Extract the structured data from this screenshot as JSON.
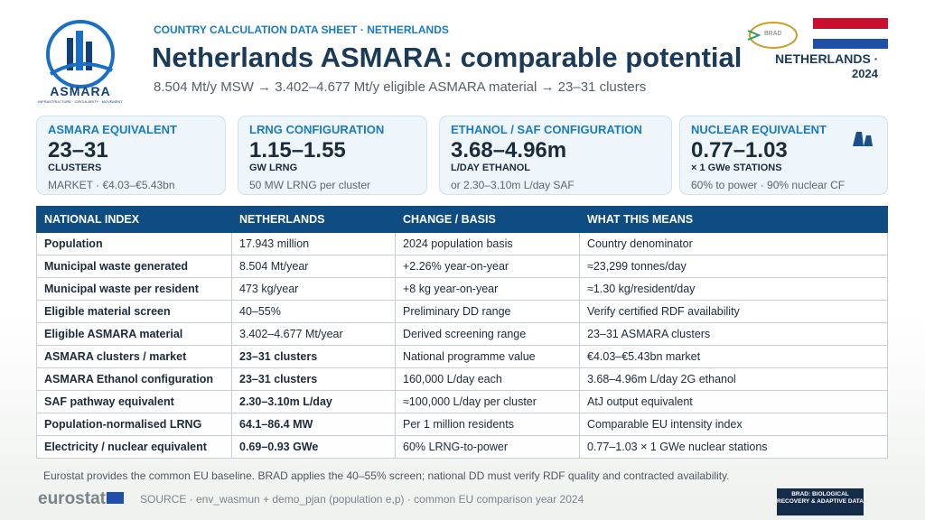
{
  "header": {
    "kicker": "COUNTRY CALCULATION DATA SHEET · NETHERLANDS",
    "title": "Netherlands ASMARA: comparable potential",
    "subtitle": "8.504 Mt/y MSW → 3.402–4.677 Mt/y eligible ASMARA material → 23–31 clusters",
    "logo_text": "ASMARA",
    "logo_tagline": "INFRASTRUCTURE · CIRCULARITY · MOVEMENT",
    "partner_logo": "BRAD",
    "country": "NETHERLANDS ·",
    "year": "2024"
  },
  "cards": [
    {
      "label": "ASMARA EQUIVALENT",
      "value": "23–31",
      "unit": "CLUSTERS",
      "note": "MARKET · €4.03–€5.43bn"
    },
    {
      "label": "LRNG CONFIGURATION",
      "value": "1.15–1.55",
      "unit": "GW LRNG",
      "note": "50 MW LRNG per cluster"
    },
    {
      "label": "ETHANOL / SAF CONFIGURATION",
      "value": "3.68–4.96m",
      "unit": "L/DAY ETHANOL",
      "note": "or 2.30–3.10m L/day SAF"
    },
    {
      "label": "NUCLEAR EQUIVALENT",
      "value": "0.77–1.03",
      "unit": "× 1 GWe STATIONS",
      "note": "60% to power · 90% nuclear CF"
    }
  ],
  "table": {
    "headers": [
      "NATIONAL INDEX",
      "NETHERLANDS",
      "CHANGE / BASIS",
      "WHAT THIS MEANS"
    ],
    "rows": [
      [
        "Population",
        "17.943 million",
        "2024 population basis",
        "Country denominator"
      ],
      [
        "Municipal waste generated",
        "8.504 Mt/year",
        "+2.26% year-on-year",
        "≈23,299 tonnes/day"
      ],
      [
        "Municipal waste per resident",
        "473 kg/year",
        "+8 kg year-on-year",
        "≈1.30 kg/resident/day"
      ],
      [
        "Eligible material screen",
        "40–55%",
        "Preliminary DD range",
        "Verify certified RDF availability"
      ],
      [
        "Eligible ASMARA material",
        "3.402–4.677 Mt/year",
        "Derived screening range",
        "23–31 ASMARA clusters"
      ],
      [
        "ASMARA clusters / market",
        "23–31 clusters",
        "National programme value",
        "€4.03–€5.43bn market"
      ],
      [
        "ASMARA Ethanol configuration",
        "23–31 clusters",
        "160,000 L/day each",
        "3.68–4.96m L/day 2G ethanol"
      ],
      [
        "SAF pathway equivalent",
        "2.30–3.10m L/day",
        "≈100,000 L/day per cluster",
        "AtJ output equivalent"
      ],
      [
        "Population-normalised LRNG",
        "64.1–86.4 MW",
        "Per 1 million residents",
        "Comparable EU intensity index"
      ],
      [
        "Electricity / nuclear equivalent",
        "0.69–0.93 GWe",
        "60% LRNG-to-power",
        "0.77–1.03 × 1 GWe nuclear stations"
      ]
    ]
  },
  "footer": {
    "note": "Eurostat provides the common EU baseline. BRAD applies the 40–55% screen; national DD must verify RDF quality and contracted availability.",
    "brand": "eurostat",
    "source": "SOURCE · env_wasmun + demo_pjan (population e,p) · common EU comparison year 2024",
    "badge": "BRAD: BIOLOGICAL RECOVERY & ADAPTIVE DATA"
  }
}
